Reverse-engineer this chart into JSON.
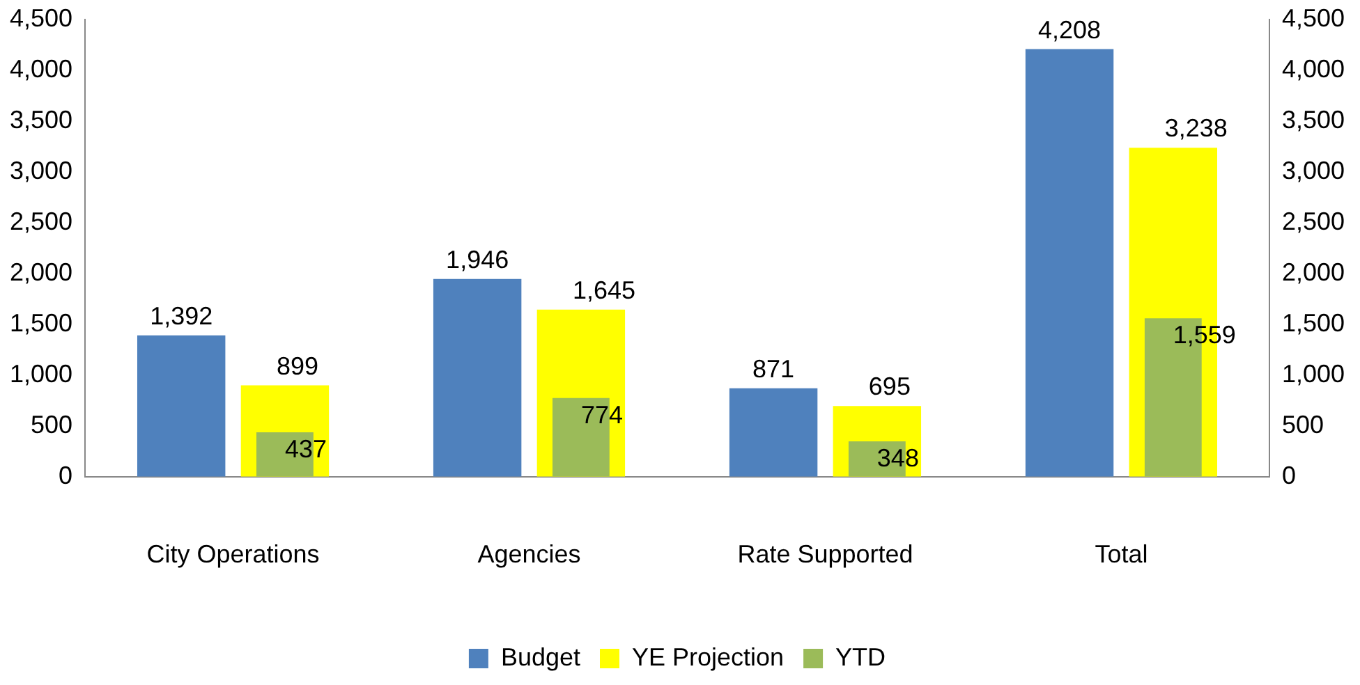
{
  "chart_data": {
    "type": "bar",
    "categories": [
      "City Operations",
      "Agencies",
      "Rate Supported",
      "Total"
    ],
    "series": [
      {
        "name": "Budget",
        "color": "#4f81bd",
        "values": [
          1392,
          1946,
          871,
          4208
        ],
        "value_labels": [
          "1,392",
          "1,946",
          "871",
          "4,208"
        ]
      },
      {
        "name": "YE Projection",
        "color": "#ffff00",
        "values": [
          899,
          1645,
          695,
          3238
        ],
        "value_labels": [
          "899",
          "1,645",
          "695",
          "3,238"
        ]
      },
      {
        "name": "YTD",
        "color": "#9bbb59",
        "values": [
          437,
          774,
          348,
          1559
        ],
        "value_labels": [
          "437",
          "774",
          "348",
          "1,559"
        ]
      }
    ],
    "ylim": [
      0,
      4500
    ],
    "yticks": [
      0,
      {
        "value": 500,
        "label": "500"
      },
      {
        "value": 1000,
        "label": "1,000"
      },
      {
        "value": 1500,
        "label": "1,500"
      },
      {
        "value": 2000,
        "label": "2,000"
      },
      {
        "value": 2500,
        "label": "2,500"
      },
      {
        "value": 3000,
        "label": "3,000"
      },
      {
        "value": 3500,
        "label": "3,500"
      },
      {
        "value": 4000,
        "label": "4,000"
      },
      {
        "value": 4500,
        "label": "4,500"
      }
    ],
    "y2lim": [
      0,
      4500
    ],
    "y2ticks": [
      0,
      {
        "value": 500,
        "label": "500"
      },
      {
        "value": 1000,
        "label": "1,000"
      },
      {
        "value": 1500,
        "label": "1,500"
      },
      {
        "value": 2000,
        "label": "2,000"
      },
      {
        "value": 2500,
        "label": "2,500"
      },
      {
        "value": 3000,
        "label": "3,000"
      },
      {
        "value": 3500,
        "label": "3,500"
      },
      {
        "value": 4000,
        "label": "4,000"
      },
      {
        "value": 4500,
        "label": "4,500"
      }
    ],
    "grid": false,
    "legend": "bottom"
  }
}
